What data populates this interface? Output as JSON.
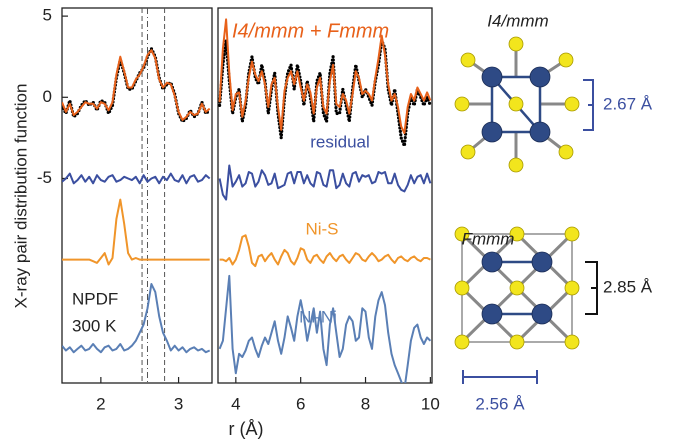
{
  "chart_data": [
    {
      "type": "line",
      "ylabel": "X-ray pair distribution function",
      "xlabel": "r (Å)",
      "xlim": [
        1.5,
        3.43
      ],
      "xticks": [
        2,
        3
      ],
      "ylim": [
        -17.6,
        5.5
      ],
      "yticks": [
        5,
        0,
        -5
      ],
      "vlines": [
        2.53,
        2.6,
        2.82
      ],
      "annotations": [
        "NPDF",
        "300 K"
      ],
      "x": [
        1.5,
        1.55,
        1.6,
        1.65,
        1.7,
        1.75,
        1.8,
        1.85,
        1.9,
        1.95,
        2.0,
        2.05,
        2.1,
        2.15,
        2.2,
        2.25,
        2.3,
        2.35,
        2.4,
        2.45,
        2.5,
        2.55,
        2.6,
        2.65,
        2.7,
        2.75,
        2.8,
        2.85,
        2.9,
        2.95,
        3.0,
        3.05,
        3.1,
        3.15,
        3.2,
        3.25,
        3.3,
        3.35,
        3.4
      ],
      "series": [
        {
          "color": "#000000",
          "style": "dots",
          "values": [
            -0.5,
            -1.0,
            -0.2,
            -1.2,
            -1.0,
            -0.5,
            -0.2,
            -0.5,
            -0.3,
            -0.8,
            -0.2,
            -0.3,
            -1.0,
            -0.5,
            1.2,
            2.3,
            1.5,
            0.5,
            0.5,
            1.0,
            1.5,
            1.8,
            2.5,
            3.0,
            2.5,
            1.2,
            0.5,
            0.8,
            0.9,
            0.2,
            -1.0,
            -1.5,
            -1.3,
            -0.8,
            -1.2,
            -1.0,
            -0.3,
            -1.0,
            -0.8
          ]
        },
        {
          "color": "#e8611a",
          "values": [
            -0.3,
            -0.9,
            -0.4,
            -1.1,
            -0.9,
            -0.6,
            -0.3,
            -0.4,
            -0.4,
            -0.7,
            -0.3,
            -0.4,
            -0.8,
            -0.3,
            1.4,
            2.5,
            1.6,
            0.6,
            0.6,
            1.1,
            1.4,
            1.9,
            2.6,
            2.9,
            2.4,
            1.1,
            0.6,
            0.9,
            0.8,
            0.1,
            -0.9,
            -1.4,
            -1.2,
            -0.9,
            -1.1,
            -1.0,
            -0.4,
            -0.9,
            -0.7
          ]
        },
        {
          "color": "#3b4fa0",
          "values": [
            -5.2,
            -5.0,
            -4.7,
            -5.3,
            -5.1,
            -4.8,
            -5.2,
            -4.9,
            -5.3,
            -4.8,
            -5.1,
            -5.2,
            -4.9,
            -4.8,
            -5.2,
            -5.1,
            -4.9,
            -5.0,
            -5.1,
            -4.9,
            -5.3,
            -4.8,
            -5.2,
            -5.0,
            -4.9,
            -5.3,
            -4.9,
            -5.1,
            -4.7,
            -5.1,
            -5.2,
            -4.8,
            -5.3,
            -4.9,
            -4.8,
            -5.2,
            -5.1,
            -4.8,
            -5.0
          ]
        },
        {
          "color": "#f0952a",
          "values": [
            -10.0,
            -10.0,
            -10.0,
            -10.0,
            -10.0,
            -10.0,
            -10.0,
            -10.0,
            -10.1,
            -10.2,
            -9.9,
            -9.6,
            -10.3,
            -9.9,
            -7.5,
            -6.3,
            -7.8,
            -9.6,
            -10.0,
            -9.9,
            -10.0,
            -10.0,
            -10.0,
            -10.0,
            -10.0,
            -10.0,
            -10.0,
            -10.0,
            -10.0,
            -10.0,
            -10.0,
            -10.0,
            -10.0,
            -10.0,
            -10.0,
            -10.0,
            -10.0,
            -10.0,
            -10.0
          ]
        },
        {
          "color": "#5a7fb5",
          "values": [
            -15.3,
            -15.6,
            -15.4,
            -15.7,
            -15.5,
            -15.3,
            -15.6,
            -15.5,
            -15.2,
            -15.5,
            -15.7,
            -15.4,
            -15.3,
            -15.6,
            -15.5,
            -15.2,
            -15.6,
            -15.5,
            -15.3,
            -15.0,
            -14.5,
            -14.0,
            -13.0,
            -11.5,
            -12.0,
            -13.5,
            -14.5,
            -15.0,
            -15.6,
            -15.3,
            -15.6,
            -15.4,
            -15.7,
            -15.5,
            -15.4,
            -15.6,
            -15.5,
            -15.7,
            -15.6
          ]
        }
      ]
    },
    {
      "type": "line",
      "xlim": [
        3.45,
        10.05
      ],
      "xticks": [
        4,
        6,
        8,
        10
      ],
      "ylim": [
        -17.6,
        5.5
      ],
      "x": [
        3.5,
        3.6,
        3.7,
        3.8,
        3.9,
        4.0,
        4.1,
        4.2,
        4.3,
        4.4,
        4.5,
        4.6,
        4.7,
        4.8,
        4.9,
        5.0,
        5.1,
        5.2,
        5.3,
        5.4,
        5.5,
        5.6,
        5.7,
        5.8,
        5.9,
        6.0,
        6.1,
        6.2,
        6.3,
        6.4,
        6.5,
        6.6,
        6.7,
        6.8,
        6.9,
        7.0,
        7.1,
        7.2,
        7.3,
        7.4,
        7.5,
        7.6,
        7.7,
        7.8,
        7.9,
        8.0,
        8.1,
        8.2,
        8.3,
        8.4,
        8.5,
        8.6,
        8.7,
        8.8,
        8.9,
        9.0,
        9.1,
        9.2,
        9.3,
        9.4,
        9.5,
        9.6,
        9.7,
        9.8,
        9.9,
        10.0
      ],
      "series": [
        {
          "color": "#000000",
          "style": "dots",
          "values": [
            -0.5,
            2,
            3.5,
            1,
            -1,
            0,
            0.5,
            -1.5,
            -0.5,
            1.5,
            2.5,
            1.2,
            0.8,
            2,
            1,
            -1,
            0.5,
            1.5,
            -1,
            -2.5,
            0,
            1.5,
            2,
            0.5,
            2,
            1,
            -0.5,
            1,
            0,
            -1.5,
            1,
            1.5,
            -1,
            -1.5,
            1.5,
            2.5,
            -1,
            -1,
            0.5,
            -0.5,
            -1.5,
            0.5,
            2,
            1,
            0,
            0.5,
            0,
            -0.5,
            1,
            2,
            3.5,
            3,
            0.5,
            -0.5,
            0.5,
            -1,
            -2.5,
            -3,
            -1,
            0,
            -0.5,
            0.5,
            0,
            -0.5,
            0,
            -0.5
          ]
        },
        {
          "name": "I4/mmm + Fmmm",
          "color": "#e8611a",
          "values": [
            -0.3,
            3,
            4.8,
            1.5,
            -0.8,
            0.2,
            0.3,
            -1.2,
            -0.2,
            1.2,
            2.2,
            1.4,
            1,
            1.6,
            0.8,
            -0.6,
            0.8,
            1.2,
            -0.6,
            -2,
            0.4,
            1.2,
            1.6,
            0.8,
            1.6,
            0.6,
            -0.2,
            0.8,
            0.3,
            -1,
            0.6,
            1.2,
            -0.6,
            -1,
            1,
            2,
            -0.4,
            -0.6,
            0.2,
            -0.2,
            -1,
            0.2,
            1.6,
            1.2,
            0.2,
            0.4,
            0.2,
            -0.2,
            1.2,
            2.4,
            3.8,
            2.6,
            0.8,
            -0.2,
            0.2,
            -0.6,
            -1.8,
            -2.2,
            -0.6,
            0.2,
            -0.2,
            0.6,
            0.2,
            -0.2,
            0.3,
            -0.2
          ]
        },
        {
          "name": "residual",
          "color": "#3b4fa0",
          "values": [
            -5,
            -6,
            -6.3,
            -4.2,
            -5.5,
            -5.2,
            -4.8,
            -5.5,
            -5.3,
            -4.6,
            -4.7,
            -5.5,
            -5.2,
            -4.5,
            -4.8,
            -5.4,
            -5.3,
            -4.7,
            -5.6,
            -5.5,
            -5.4,
            -4.7,
            -4.6,
            -5.3,
            -4.6,
            -4.6,
            -5.3,
            -4.8,
            -5.3,
            -5.5,
            -4.6,
            -4.7,
            -5.4,
            -5.5,
            -4.5,
            -4.5,
            -5.6,
            -5.4,
            -4.7,
            -5.3,
            -5.5,
            -4.7,
            -4.6,
            -5.2,
            -4.8,
            -4.9,
            -4.8,
            -5.3,
            -5.2,
            -4.6,
            -4.7,
            -4.6,
            -5.3,
            -5.3,
            -4.7,
            -5.4,
            -5.7,
            -5.8,
            -5.4,
            -4.8,
            -5.3,
            -4.9,
            -4.8,
            -5.3,
            -4.7,
            -5.3
          ]
        },
        {
          "name": "Ni-S",
          "color": "#f0952a",
          "values": [
            -10.0,
            -10.0,
            -10.1,
            -9.9,
            -10.3,
            -10.0,
            -9.4,
            -8.6,
            -8.5,
            -9.2,
            -10.2,
            -10.4,
            -9.8,
            -9.7,
            -10.1,
            -9.8,
            -9.6,
            -10.0,
            -10.3,
            -9.8,
            -9.4,
            -9.6,
            -10.1,
            -10.3,
            -9.9,
            -9.3,
            -9.4,
            -10.0,
            -10.2,
            -9.8,
            -9.7,
            -10.0,
            -10.2,
            -9.8,
            -9.6,
            -9.9,
            -10.1,
            -9.8,
            -9.7,
            -10.0,
            -10.2,
            -9.9,
            -9.6,
            -9.7,
            -10.0,
            -10.1,
            -9.8,
            -9.6,
            -9.8,
            -10.1,
            -10.0,
            -9.8,
            -9.7,
            -10.0,
            -10.2,
            -9.9,
            -9.8,
            -10.0,
            -10.1,
            -9.9,
            -9.8,
            -10.0,
            -10.1,
            -9.9,
            -9.9,
            -10.0
          ]
        },
        {
          "name": "Ni-Ni",
          "color": "#5a7fb5",
          "values": [
            -15.5,
            -15.0,
            -13.0,
            -11.0,
            -15.5,
            -17.0,
            -15.8,
            -16.0,
            -15.6,
            -15.0,
            -14.8,
            -15.5,
            -16.0,
            -15.3,
            -14.8,
            -15.2,
            -14.5,
            -13.8,
            -15.0,
            -15.8,
            -14.8,
            -13.5,
            -14.2,
            -15.0,
            -13.5,
            -12.5,
            -13.5,
            -15.0,
            -14.0,
            -13.0,
            -14.5,
            -13.2,
            -15.5,
            -16.5,
            -14.0,
            -13.0,
            -14.5,
            -16.0,
            -15.5,
            -14.0,
            -13.5,
            -13.8,
            -15.0,
            -14.8,
            -13.0,
            -13.2,
            -14.8,
            -15.5,
            -13.5,
            -12.5,
            -12.0,
            -12.8,
            -14.5,
            -15.8,
            -16.5,
            -17.0,
            -17.5,
            -18.0,
            -16.5,
            -15.0,
            -14.2,
            -14.0,
            -14.8,
            -15.2,
            -14.8,
            -15.0
          ]
        }
      ]
    }
  ],
  "structures": [
    {
      "title": "I4/mmm",
      "labels": [
        "2.67 Å"
      ]
    },
    {
      "title": "Fmmm",
      "labels": [
        "2.85 Å",
        "2.56 Å"
      ]
    }
  ]
}
